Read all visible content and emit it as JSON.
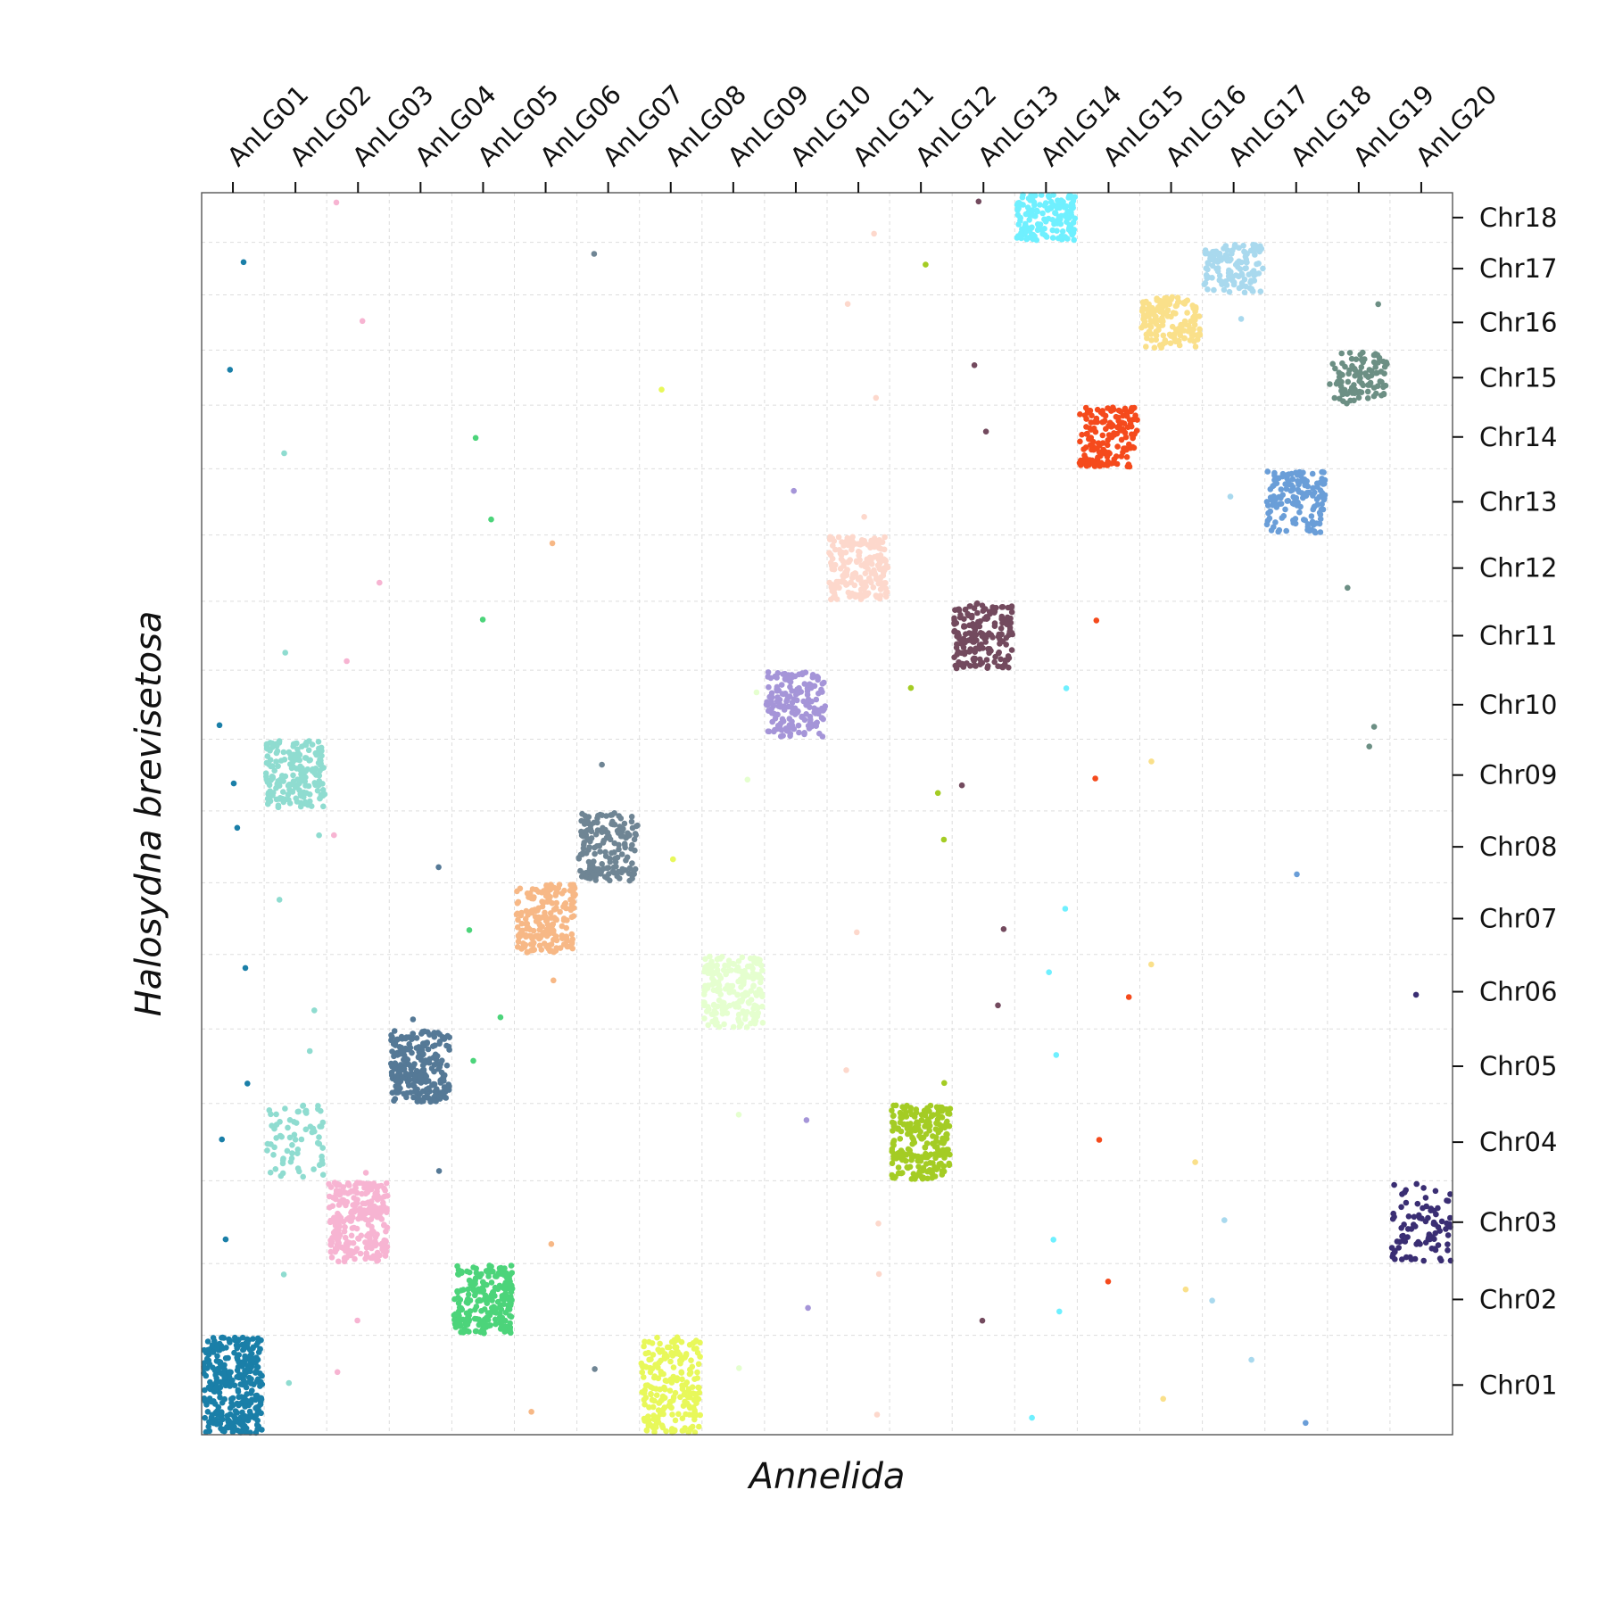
{
  "chart_data": {
    "type": "scatter",
    "title": "",
    "xlabel": "Annelida",
    "ylabel": "Halosydna brevisetosa",
    "x_axis_position": "top",
    "y_axis_position": "right",
    "grid": true,
    "legend": "none",
    "x_categories": [
      "AnLG01",
      "AnLG02",
      "AnLG03",
      "AnLG04",
      "AnLG05",
      "AnLG06",
      "AnLG07",
      "AnLG08",
      "AnLG09",
      "AnLG10",
      "AnLG11",
      "AnLG12",
      "AnLG13",
      "AnLG14",
      "AnLG15",
      "AnLG16",
      "AnLG17",
      "AnLG18",
      "AnLG19",
      "AnLG20"
    ],
    "y_categories": [
      "Chr01",
      "Chr02",
      "Chr03",
      "Chr04",
      "Chr05",
      "Chr06",
      "Chr07",
      "Chr08",
      "Chr09",
      "Chr10",
      "Chr11",
      "Chr12",
      "Chr13",
      "Chr14",
      "Chr15",
      "Chr16",
      "Chr17",
      "Chr18"
    ],
    "x_sizes": [
      1,
      1,
      1,
      1,
      1,
      1,
      1,
      1,
      1,
      1,
      1,
      1,
      1,
      1,
      1,
      1,
      1,
      1,
      1,
      1
    ],
    "y_sizes": [
      1.8,
      1.3,
      1.5,
      1.4,
      1.35,
      1.35,
      1.3,
      1.3,
      1.3,
      1.25,
      1.25,
      1.2,
      1.2,
      1.15,
      1.0,
      1.0,
      0.95,
      0.9
    ],
    "clusters": [
      {
        "x": "AnLG01",
        "y": "Chr01",
        "n": 340,
        "color": "#1a7fa8"
      },
      {
        "x": "AnLG02",
        "y": "Chr09",
        "n": 190,
        "color": "#8fdcd0"
      },
      {
        "x": "AnLG02",
        "y": "Chr04",
        "n": 70,
        "color": "#8fdcd0"
      },
      {
        "x": "AnLG03",
        "y": "Chr03",
        "n": 260,
        "color": "#f7b4d2"
      },
      {
        "x": "AnLG04",
        "y": "Chr05",
        "n": 240,
        "color": "#557996"
      },
      {
        "x": "AnLG05",
        "y": "Chr02",
        "n": 220,
        "color": "#4cd47a"
      },
      {
        "x": "AnLG06",
        "y": "Chr07",
        "n": 200,
        "color": "#f7b886"
      },
      {
        "x": "AnLG07",
        "y": "Chr08",
        "n": 170,
        "color": "#6f8594"
      },
      {
        "x": "AnLG08",
        "y": "Chr01",
        "n": 220,
        "color": "#e8f85a"
      },
      {
        "x": "AnLG09",
        "y": "Chr06",
        "n": 200,
        "color": "#e5ffcf"
      },
      {
        "x": "AnLG10",
        "y": "Chr10",
        "n": 160,
        "color": "#a595d8"
      },
      {
        "x": "AnLG11",
        "y": "Chr12",
        "n": 200,
        "color": "#fdd8cc"
      },
      {
        "x": "AnLG12",
        "y": "Chr04",
        "n": 230,
        "color": "#a4cc24"
      },
      {
        "x": "AnLG13",
        "y": "Chr11",
        "n": 180,
        "color": "#734a5e"
      },
      {
        "x": "AnLG14",
        "y": "Chr18",
        "n": 150,
        "color": "#6ff0ff"
      },
      {
        "x": "AnLG15",
        "y": "Chr14",
        "n": 160,
        "color": "#f54a1c"
      },
      {
        "x": "AnLG16",
        "y": "Chr16",
        "n": 150,
        "color": "#fae08a"
      },
      {
        "x": "AnLG17",
        "y": "Chr17",
        "n": 130,
        "color": "#a9d9ee"
      },
      {
        "x": "AnLG18",
        "y": "Chr13",
        "n": 140,
        "color": "#6a9ed8"
      },
      {
        "x": "AnLG19",
        "y": "Chr15",
        "n": 100,
        "color": "#6c8f84"
      },
      {
        "x": "AnLG20",
        "y": "Chr03",
        "n": 90,
        "color": "#3a2e73"
      }
    ],
    "outliers": [
      {
        "x": "AnLG01",
        "y": "Chr17",
        "color": "#1a7fa8"
      },
      {
        "x": "AnLG01",
        "y": "Chr15",
        "color": "#1a7fa8"
      },
      {
        "x": "AnLG01",
        "y": "Chr10",
        "color": "#1a7fa8"
      },
      {
        "x": "AnLG01",
        "y": "Chr09",
        "color": "#1a7fa8"
      },
      {
        "x": "AnLG01",
        "y": "Chr08",
        "color": "#1a7fa8"
      },
      {
        "x": "AnLG01",
        "y": "Chr06",
        "color": "#1a7fa8"
      },
      {
        "x": "AnLG01",
        "y": "Chr05",
        "color": "#1a7fa8"
      },
      {
        "x": "AnLG01",
        "y": "Chr04",
        "color": "#1a7fa8"
      },
      {
        "x": "AnLG01",
        "y": "Chr03",
        "color": "#1a7fa8"
      },
      {
        "x": "AnLG02",
        "y": "Chr14",
        "color": "#8fdcd0"
      },
      {
        "x": "AnLG02",
        "y": "Chr11",
        "color": "#8fdcd0"
      },
      {
        "x": "AnLG02",
        "y": "Chr08",
        "color": "#8fdcd0"
      },
      {
        "x": "AnLG02",
        "y": "Chr07",
        "color": "#8fdcd0"
      },
      {
        "x": "AnLG02",
        "y": "Chr06",
        "color": "#8fdcd0"
      },
      {
        "x": "AnLG02",
        "y": "Chr05",
        "color": "#8fdcd0"
      },
      {
        "x": "AnLG02",
        "y": "Chr02",
        "color": "#8fdcd0"
      },
      {
        "x": "AnLG02",
        "y": "Chr01",
        "color": "#8fdcd0"
      },
      {
        "x": "AnLG03",
        "y": "Chr18",
        "color": "#f7b4d2"
      },
      {
        "x": "AnLG03",
        "y": "Chr16",
        "color": "#f7b4d2"
      },
      {
        "x": "AnLG03",
        "y": "Chr12",
        "color": "#f7b4d2"
      },
      {
        "x": "AnLG03",
        "y": "Chr11",
        "color": "#f7b4d2"
      },
      {
        "x": "AnLG03",
        "y": "Chr08",
        "color": "#f7b4d2"
      },
      {
        "x": "AnLG03",
        "y": "Chr04",
        "color": "#f7b4d2"
      },
      {
        "x": "AnLG03",
        "y": "Chr02",
        "color": "#f7b4d2"
      },
      {
        "x": "AnLG03",
        "y": "Chr01",
        "color": "#f7b4d2"
      },
      {
        "x": "AnLG04",
        "y": "Chr08",
        "color": "#557996"
      },
      {
        "x": "AnLG04",
        "y": "Chr06",
        "color": "#557996"
      },
      {
        "x": "AnLG04",
        "y": "Chr04",
        "color": "#557996"
      },
      {
        "x": "AnLG05",
        "y": "Chr14",
        "color": "#4cd47a"
      },
      {
        "x": "AnLG05",
        "y": "Chr13",
        "color": "#4cd47a"
      },
      {
        "x": "AnLG05",
        "y": "Chr11",
        "color": "#4cd47a"
      },
      {
        "x": "AnLG05",
        "y": "Chr07",
        "color": "#4cd47a"
      },
      {
        "x": "AnLG05",
        "y": "Chr06",
        "color": "#4cd47a"
      },
      {
        "x": "AnLG05",
        "y": "Chr05",
        "color": "#4cd47a"
      },
      {
        "x": "AnLG06",
        "y": "Chr12",
        "color": "#f7b886"
      },
      {
        "x": "AnLG06",
        "y": "Chr06",
        "color": "#f7b886"
      },
      {
        "x": "AnLG06",
        "y": "Chr03",
        "color": "#f7b886"
      },
      {
        "x": "AnLG06",
        "y": "Chr01",
        "color": "#f7b886"
      },
      {
        "x": "AnLG07",
        "y": "Chr17",
        "color": "#6f8594"
      },
      {
        "x": "AnLG07",
        "y": "Chr09",
        "color": "#6f8594"
      },
      {
        "x": "AnLG07",
        "y": "Chr01",
        "color": "#6f8594"
      },
      {
        "x": "AnLG08",
        "y": "Chr15",
        "color": "#e8f85a"
      },
      {
        "x": "AnLG08",
        "y": "Chr08",
        "color": "#e8f85a"
      },
      {
        "x": "AnLG09",
        "y": "Chr10",
        "color": "#e5ffcf"
      },
      {
        "x": "AnLG09",
        "y": "Chr09",
        "color": "#e5ffcf"
      },
      {
        "x": "AnLG09",
        "y": "Chr04",
        "color": "#e5ffcf"
      },
      {
        "x": "AnLG09",
        "y": "Chr01",
        "color": "#e5ffcf"
      },
      {
        "x": "AnLG10",
        "y": "Chr13",
        "color": "#a595d8"
      },
      {
        "x": "AnLG10",
        "y": "Chr04",
        "color": "#a595d8"
      },
      {
        "x": "AnLG10",
        "y": "Chr02",
        "color": "#a595d8"
      },
      {
        "x": "AnLG11",
        "y": "Chr18",
        "color": "#fdd8cc"
      },
      {
        "x": "AnLG11",
        "y": "Chr16",
        "color": "#fdd8cc"
      },
      {
        "x": "AnLG11",
        "y": "Chr15",
        "color": "#fdd8cc"
      },
      {
        "x": "AnLG11",
        "y": "Chr13",
        "color": "#fdd8cc"
      },
      {
        "x": "AnLG11",
        "y": "Chr07",
        "color": "#fdd8cc"
      },
      {
        "x": "AnLG11",
        "y": "Chr05",
        "color": "#fdd8cc"
      },
      {
        "x": "AnLG11",
        "y": "Chr03",
        "color": "#fdd8cc"
      },
      {
        "x": "AnLG11",
        "y": "Chr02",
        "color": "#fdd8cc"
      },
      {
        "x": "AnLG11",
        "y": "Chr01",
        "color": "#fdd8cc"
      },
      {
        "x": "AnLG12",
        "y": "Chr17",
        "color": "#a4cc24"
      },
      {
        "x": "AnLG12",
        "y": "Chr10",
        "color": "#a4cc24"
      },
      {
        "x": "AnLG12",
        "y": "Chr09",
        "color": "#a4cc24"
      },
      {
        "x": "AnLG12",
        "y": "Chr08",
        "color": "#a4cc24"
      },
      {
        "x": "AnLG12",
        "y": "Chr05",
        "color": "#a4cc24"
      },
      {
        "x": "AnLG13",
        "y": "Chr18",
        "color": "#734a5e"
      },
      {
        "x": "AnLG13",
        "y": "Chr15",
        "color": "#734a5e"
      },
      {
        "x": "AnLG13",
        "y": "Chr14",
        "color": "#734a5e"
      },
      {
        "x": "AnLG13",
        "y": "Chr09",
        "color": "#734a5e"
      },
      {
        "x": "AnLG13",
        "y": "Chr07",
        "color": "#734a5e"
      },
      {
        "x": "AnLG13",
        "y": "Chr06",
        "color": "#734a5e"
      },
      {
        "x": "AnLG13",
        "y": "Chr02",
        "color": "#734a5e"
      },
      {
        "x": "AnLG14",
        "y": "Chr10",
        "color": "#6ff0ff"
      },
      {
        "x": "AnLG14",
        "y": "Chr07",
        "color": "#6ff0ff"
      },
      {
        "x": "AnLG14",
        "y": "Chr06",
        "color": "#6ff0ff"
      },
      {
        "x": "AnLG14",
        "y": "Chr05",
        "color": "#6ff0ff"
      },
      {
        "x": "AnLG14",
        "y": "Chr03",
        "color": "#6ff0ff"
      },
      {
        "x": "AnLG14",
        "y": "Chr02",
        "color": "#6ff0ff"
      },
      {
        "x": "AnLG14",
        "y": "Chr01",
        "color": "#6ff0ff"
      },
      {
        "x": "AnLG15",
        "y": "Chr11",
        "color": "#f54a1c"
      },
      {
        "x": "AnLG15",
        "y": "Chr09",
        "color": "#f54a1c"
      },
      {
        "x": "AnLG15",
        "y": "Chr06",
        "color": "#f54a1c"
      },
      {
        "x": "AnLG15",
        "y": "Chr04",
        "color": "#f54a1c"
      },
      {
        "x": "AnLG15",
        "y": "Chr02",
        "color": "#f54a1c"
      },
      {
        "x": "AnLG16",
        "y": "Chr09",
        "color": "#fae08a"
      },
      {
        "x": "AnLG16",
        "y": "Chr06",
        "color": "#fae08a"
      },
      {
        "x": "AnLG16",
        "y": "Chr04",
        "color": "#fae08a"
      },
      {
        "x": "AnLG16",
        "y": "Chr02",
        "color": "#fae08a"
      },
      {
        "x": "AnLG16",
        "y": "Chr01",
        "color": "#fae08a"
      },
      {
        "x": "AnLG17",
        "y": "Chr16",
        "color": "#a9d9ee"
      },
      {
        "x": "AnLG17",
        "y": "Chr13",
        "color": "#a9d9ee"
      },
      {
        "x": "AnLG17",
        "y": "Chr03",
        "color": "#a9d9ee"
      },
      {
        "x": "AnLG17",
        "y": "Chr02",
        "color": "#a9d9ee"
      },
      {
        "x": "AnLG17",
        "y": "Chr01",
        "color": "#a9d9ee"
      },
      {
        "x": "AnLG18",
        "y": "Chr08",
        "color": "#6a9ed8"
      },
      {
        "x": "AnLG18",
        "y": "Chr01",
        "color": "#6a9ed8"
      },
      {
        "x": "AnLG19",
        "y": "Chr16",
        "color": "#6c8f84"
      },
      {
        "x": "AnLG19",
        "y": "Chr12",
        "color": "#6c8f84"
      },
      {
        "x": "AnLG19",
        "y": "Chr10",
        "color": "#6c8f84"
      },
      {
        "x": "AnLG19",
        "y": "Chr09",
        "color": "#6c8f84"
      },
      {
        "x": "AnLG20",
        "y": "Chr06",
        "color": "#3a2e73"
      }
    ]
  }
}
